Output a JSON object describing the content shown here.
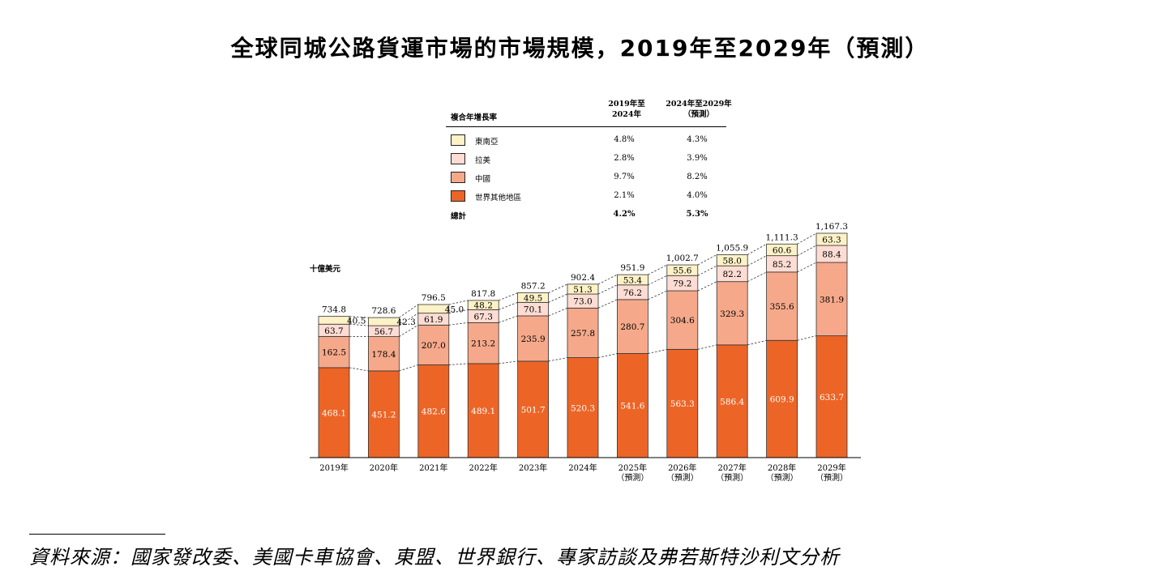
{
  "title": "全球同城公路貨運市場的市場規模，2019年至2029年（預測）",
  "legend": {
    "header_label": "複合年增長率",
    "col1": [
      "2019年至",
      "2024年"
    ],
    "col2": [
      "2024年至2029年",
      "（預測）"
    ],
    "rows": [
      {
        "name": "東南亞",
        "cagr1": "4.8%",
        "cagr2": "4.3%",
        "color": "#fdf2c6"
      },
      {
        "name": "拉美",
        "cagr1": "2.8%",
        "cagr2": "3.9%",
        "color": "#fcdcd3"
      },
      {
        "name": "中國",
        "cagr1": "9.7%",
        "cagr2": "8.2%",
        "color": "#f5a98a"
      },
      {
        "name": "世界其他地區",
        "cagr1": "2.1%",
        "cagr2": "4.0%",
        "color": "#ec6527"
      }
    ],
    "total": {
      "name": "總計",
      "cagr1": "4.2%",
      "cagr2": "5.3%"
    }
  },
  "unit_label": "十億美元",
  "source": "資料來源：國家發改委、美國卡車協會、東盟、世界銀行、專家訪談及弗若斯特沙利文分析",
  "chart_data": {
    "type": "bar",
    "stacked": true,
    "title": "全球同城公路貨運市場的市場規模，2019年至2029年（預測）",
    "ylabel": "十億美元",
    "categories": [
      "2019年",
      "2020年",
      "2021年",
      "2022年",
      "2023年",
      "2024年",
      "2025年\n（預測）",
      "2026年\n（預測）",
      "2027年\n（預測）",
      "2028年\n（預測）",
      "2029年\n（預測）"
    ],
    "series": [
      {
        "name": "世界其他地區",
        "color": "#ec6527",
        "values": [
          468.1,
          451.2,
          482.6,
          489.1,
          501.7,
          520.3,
          541.6,
          563.3,
          586.4,
          609.9,
          633.7
        ]
      },
      {
        "name": "中國",
        "color": "#f5a98a",
        "values": [
          162.5,
          178.4,
          207.0,
          213.2,
          235.9,
          257.8,
          280.7,
          304.6,
          329.3,
          355.6,
          381.9
        ]
      },
      {
        "name": "拉美",
        "color": "#fcdcd3",
        "values": [
          63.7,
          56.7,
          61.9,
          67.3,
          70.1,
          73.0,
          76.2,
          79.2,
          82.2,
          85.2,
          88.4
        ]
      },
      {
        "name": "東南亞",
        "color": "#fdf2c6",
        "values": [
          40.5,
          42.3,
          45.0,
          48.2,
          49.5,
          51.3,
          53.4,
          55.6,
          58.0,
          60.6,
          63.3
        ]
      }
    ],
    "totals": [
      "734.8",
      "728.6",
      "796.5",
      "817.8",
      "857.2",
      "902.4",
      "951.9",
      "1,002.7",
      "1,055.9",
      "1,111.3",
      "1,167.3"
    ],
    "ylim": [
      0,
      1167.3
    ]
  }
}
